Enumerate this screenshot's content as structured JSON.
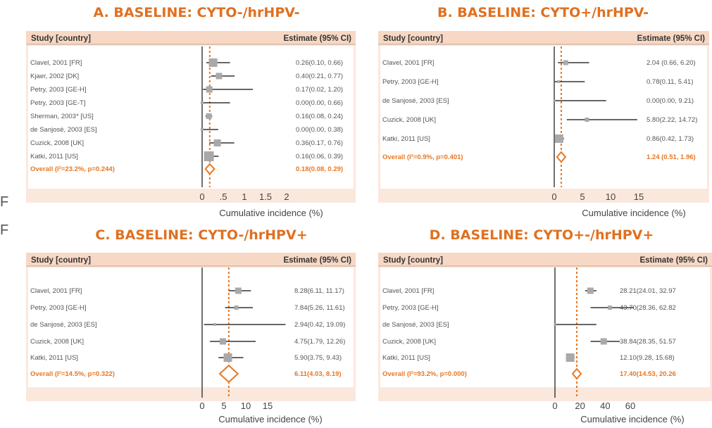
{
  "colors": {
    "accent": "#e87722",
    "title": "#e07020",
    "panel_bg": "#fbe8dc",
    "header_bg": "#f6d8c5"
  },
  "stray_glyphs": [
    "F",
    "F"
  ],
  "chart_data": [
    {
      "type": "forest",
      "title": "A. BASELINE: CYTO-/hrHPV-",
      "col_study": "Study [country]",
      "col_estimate": "Estimate (95% CI)",
      "xlabel": "Cumulative incidence (%)",
      "xticks": [
        "0",
        ".5",
        "1",
        "1.5",
        "2"
      ],
      "xlim": [
        0,
        2
      ],
      "reference_line": 0.18,
      "studies": [
        {
          "label": "Clavel, 2001 [FR]",
          "est": 0.26,
          "lo": 0.1,
          "hi": 0.66,
          "text": "0.26(0.10, 0.66)"
        },
        {
          "label": "Kjaer, 2002 [DK]",
          "est": 0.4,
          "lo": 0.21,
          "hi": 0.77,
          "text": "0.40(0.21, 0.77)"
        },
        {
          "label": "Petry, 2003 [GE-H]",
          "est": 0.17,
          "lo": 0.02,
          "hi": 1.2,
          "text": "0.17(0.02, 1.20)"
        },
        {
          "label": "Petry, 2003 [GE-T]",
          "est": 0.0,
          "lo": 0.0,
          "hi": 0.66,
          "text": "0.00(0.00, 0.66)"
        },
        {
          "label": "Sherman, 2003* [US]",
          "est": 0.16,
          "lo": 0.08,
          "hi": 0.24,
          "text": "0.16(0.08, 0.24)"
        },
        {
          "label": "de Sanjosé, 2003 [ES]",
          "est": 0.0,
          "lo": 0.0,
          "hi": 0.38,
          "text": "0.00(0.00, 0.38)"
        },
        {
          "label": "Cuzick, 2008 [UK]",
          "est": 0.36,
          "lo": 0.17,
          "hi": 0.76,
          "text": "0.36(0.17, 0.76)"
        },
        {
          "label": "Katki, 2011 [US]",
          "est": 0.16,
          "lo": 0.06,
          "hi": 0.39,
          "text": "0.16(0.06, 0.39)"
        }
      ],
      "overall": {
        "label": "Overall (I²=23.2%, p=0.244)",
        "est": 0.18,
        "lo": 0.08,
        "hi": 0.29,
        "text": "0.18(0.08, 0.29)"
      }
    },
    {
      "type": "forest",
      "title": "B. BASELINE: CYTO+/hrHPV-",
      "col_study": "Study [country]",
      "col_estimate": "Estimate (95% CI)",
      "xlabel": "Cumulative incidence (%)",
      "xticks": [
        "0",
        "5",
        "10",
        "15"
      ],
      "xlim": [
        0,
        15
      ],
      "reference_line": 1.24,
      "studies": [
        {
          "label": "Clavel, 2001 [FR]",
          "est": 2.04,
          "lo": 0.66,
          "hi": 6.2,
          "text": "2.04 (0.66, 6.20)"
        },
        {
          "label": "Petry, 2003 [GE-H]",
          "est": 0.78,
          "lo": 0.11,
          "hi": 5.41,
          "text": "0.78(0.11, 5.41)"
        },
        {
          "label": "de Sanjosé, 2003 [ES]",
          "est": 0.0,
          "lo": 0.0,
          "hi": 9.21,
          "text": "0.00(0.00, 9.21)"
        },
        {
          "label": "Cuzick, 2008 [UK]",
          "est": 5.8,
          "lo": 2.22,
          "hi": 14.72,
          "text": "5.80(2.22, 14.72)"
        },
        {
          "label": "Katki, 2011 [US]",
          "est": 0.86,
          "lo": 0.42,
          "hi": 1.73,
          "text": "0.86(0.42, 1.73)"
        }
      ],
      "overall": {
        "label": "Overall (I²=0.9%, p=0.401)",
        "est": 1.24,
        "lo": 0.51,
        "hi": 1.96,
        "text": "1.24 (0.51, 1.96)"
      }
    },
    {
      "type": "forest",
      "title": "C. BASELINE: CYTO-/hrHPV+",
      "col_study": "Study [country]",
      "col_estimate": "Estimate (95% CI)",
      "xlabel": "Cumulative incidence (%)",
      "xticks": [
        "0",
        "5",
        "10",
        "15"
      ],
      "xlim": [
        0,
        15
      ],
      "reference_line": 6.11,
      "studies": [
        {
          "label": "Clavel, 2001 [FR]",
          "est": 8.28,
          "lo": 6.11,
          "hi": 11.17,
          "text": "8.28(6.11, 11.17)"
        },
        {
          "label": "Petry, 2003 [GE-H]",
          "est": 7.84,
          "lo": 5.26,
          "hi": 11.61,
          "text": "7.84(5.26, 11.61)"
        },
        {
          "label": "de Sanjosé, 2003 [ES]",
          "est": 2.94,
          "lo": 0.42,
          "hi": 19.09,
          "text": "2.94(0.42, 19.09)"
        },
        {
          "label": "Cuzick, 2008 [UK]",
          "est": 4.75,
          "lo": 1.79,
          "hi": 12.26,
          "text": "4.75(1.79, 12.26)"
        },
        {
          "label": "Katki, 2011 [US]",
          "est": 5.9,
          "lo": 3.75,
          "hi": 9.43,
          "text": "5.90(3.75, 9.43)"
        }
      ],
      "overall": {
        "label": "Overall (I²=14.5%, p=0.322)",
        "est": 6.11,
        "lo": 4.03,
        "hi": 8.19,
        "text": "6.11(4.03, 8.19)"
      }
    },
    {
      "type": "forest",
      "title": "D. BASELINE: CYTO+-/hrHPV+",
      "col_study": "Study [country]",
      "col_estimate": "Estimate (95% CI)",
      "xlabel": "Cumulative incidence (%)",
      "xticks": [
        "0",
        "20",
        "40",
        "60"
      ],
      "xlim": [
        0,
        60
      ],
      "reference_line": 17.4,
      "studies": [
        {
          "label": "Clavel, 2001 [FR]",
          "est": 28.21,
          "lo": 24.01,
          "hi": 32.97,
          "text": "28.21(24.01, 32.97"
        },
        {
          "label": "Petry, 2003 [GE-H]",
          "est": 43.7,
          "lo": 28.36,
          "hi": 62.82,
          "text": "43.70(28.36, 62.82"
        },
        {
          "label": "de Sanjosé, 2003 [ES]",
          "est": 0.0,
          "lo": 0.0,
          "hi": 33.0,
          "text": ""
        },
        {
          "label": "Cuzick, 2008 [UK]",
          "est": 38.84,
          "lo": 28.35,
          "hi": 51.57,
          "text": "38.84(28.35, 51.57"
        },
        {
          "label": "Katki, 2011 [US]",
          "est": 12.1,
          "lo": 9.28,
          "hi": 15.68,
          "text": "12.10(9.28, 15.68)"
        }
      ],
      "overall": {
        "label": "Overall (I²=93.2%, p=0.000)",
        "est": 17.4,
        "lo": 14.53,
        "hi": 20.26,
        "text": "17.40(14.53, 20.26"
      }
    }
  ]
}
